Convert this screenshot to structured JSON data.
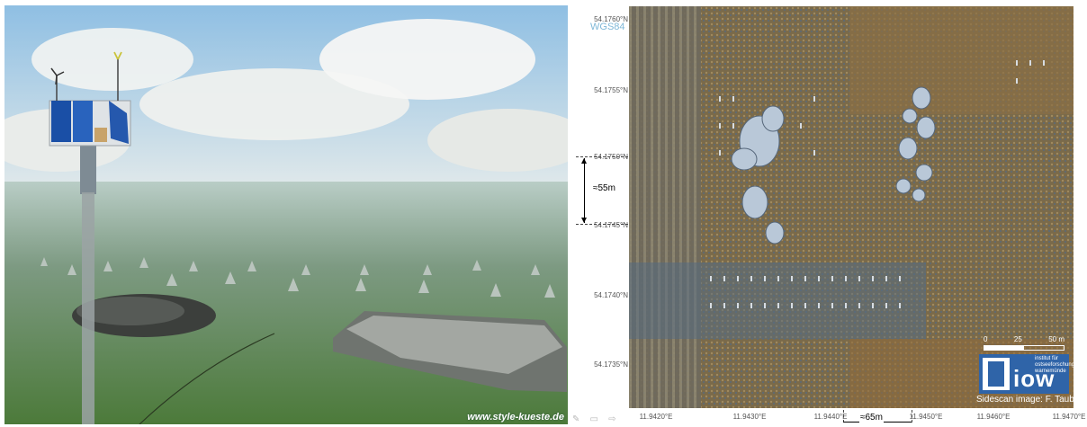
{
  "left_panel": {
    "credit": "www.style-kueste.de",
    "colors": {
      "sky": "#9ec7e6",
      "sea": "#6e8f73",
      "seabed": "#4f7d3a"
    }
  },
  "right_panel": {
    "datum": "WGS84",
    "lat_labels": [
      "54.1760°N",
      "54.1755°N",
      "54.1750°N",
      "54.1745°N",
      "54.1740°N",
      "54.1735°N"
    ],
    "lon_labels": [
      "11.9420°E",
      "11.9430°E",
      "11.9440°E",
      "11.9450°E",
      "11.9460°E",
      "11.9470°E"
    ],
    "vertical_dimension": "≈55m",
    "horizontal_dimension": "≈65m",
    "scalebar": {
      "labels": [
        "0",
        "25",
        "50 m"
      ]
    },
    "logo": {
      "text": "iow",
      "subtitle": "institut für ostseeforschung warnemünde"
    },
    "source": "Sidescan image: F. Tauber"
  },
  "toolbar": {
    "icons": [
      "pencil-icon",
      "list-icon",
      "forward-icon"
    ],
    "glyphs": "✎ ▭ ⇨"
  }
}
